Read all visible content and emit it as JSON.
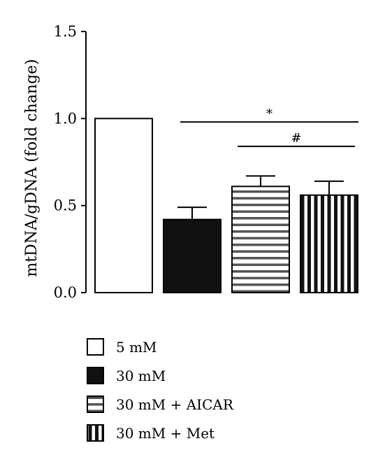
{
  "chart_data": {
    "type": "bar",
    "title": "",
    "xlabel": "",
    "ylabel": "mtDNA/gDNA (fold change)",
    "ylim": [
      0,
      1.5
    ],
    "yticks": [
      "0.0",
      "0.5",
      "1.0",
      "1.5"
    ],
    "grid": false,
    "legend_position": "bottom",
    "categories": [
      "5 mM",
      "30 mM",
      "30 mM + AICAR",
      "30 mM + Met"
    ],
    "values": [
      1.0,
      0.42,
      0.61,
      0.56
    ],
    "errors": [
      0,
      0.07,
      0.06,
      0.08
    ],
    "fills": [
      "white",
      "black",
      "horizontal-stripes",
      "vertical-stripes"
    ],
    "significance": [
      {
        "symbol": "*",
        "from": 1,
        "to": 3,
        "level": 0.98
      },
      {
        "symbol": "#",
        "from": 2,
        "to": 3,
        "level": 0.84
      }
    ]
  },
  "colors": {
    "bar_edge": "#000000",
    "dark_fill": "#111111",
    "hatch_bg": "#ffffff"
  }
}
